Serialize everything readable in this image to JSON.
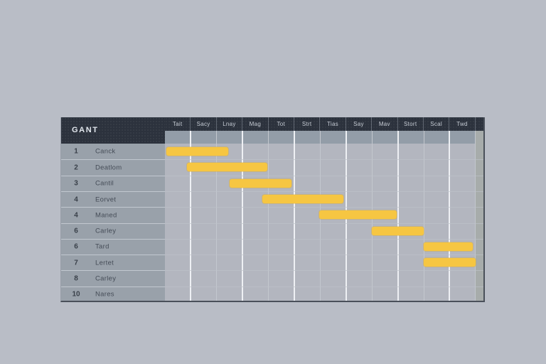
{
  "page": {
    "background": "#b9bdc6"
  },
  "chart_data": {
    "type": "bar",
    "subtype": "gantt",
    "title": "GANT",
    "x_tick_labels": [
      "Tait",
      "Sacy",
      "Lnay",
      "Mag",
      "Tot",
      "Strt",
      "Tias",
      "Say",
      "Mav",
      "Stort",
      "Scal",
      "Twd"
    ],
    "xlim": [
      0,
      12
    ],
    "grid": true,
    "legend": false,
    "bar_color": "#f6c642",
    "tasks": [
      {
        "num": "1",
        "name": "Canck",
        "start": 0.05,
        "end": 2.45
      },
      {
        "num": "2",
        "name": "Deatlom",
        "start": 0.85,
        "end": 3.95
      },
      {
        "num": "3",
        "name": "Cantil",
        "start": 2.5,
        "end": 4.9
      },
      {
        "num": "4",
        "name": "Eorvet",
        "start": 3.75,
        "end": 6.9
      },
      {
        "num": "4",
        "name": "Maned",
        "start": 5.95,
        "end": 8.95
      },
      {
        "num": "6",
        "name": "Carley",
        "start": 8.0,
        "end": 10.0
      },
      {
        "num": "6",
        "name": "Tard",
        "start": 10.0,
        "end": 11.9
      },
      {
        "num": "7",
        "name": "Lertet",
        "start": 10.0,
        "end": 12.0
      },
      {
        "num": "8",
        "name": "Carley",
        "start": null,
        "end": null
      },
      {
        "num": "10",
        "name": "Nares",
        "start": null,
        "end": null
      }
    ]
  },
  "colors": {
    "header_bg": "#2c323d",
    "header_text": "#d7dde5",
    "left_col_bg": "#99a1aa",
    "subheader_bg": "#939da8",
    "chart_bg": "#b3b6bf",
    "right_strip": "#a7acab",
    "grid_strong": "#eef0f4",
    "grid_faint": "#c3c7ce",
    "row_line": "#bfc3ca",
    "label_text": "#3a414c",
    "number_text": "#2f363f",
    "border_dark": "#4a505a",
    "bar": "#f6c642"
  }
}
